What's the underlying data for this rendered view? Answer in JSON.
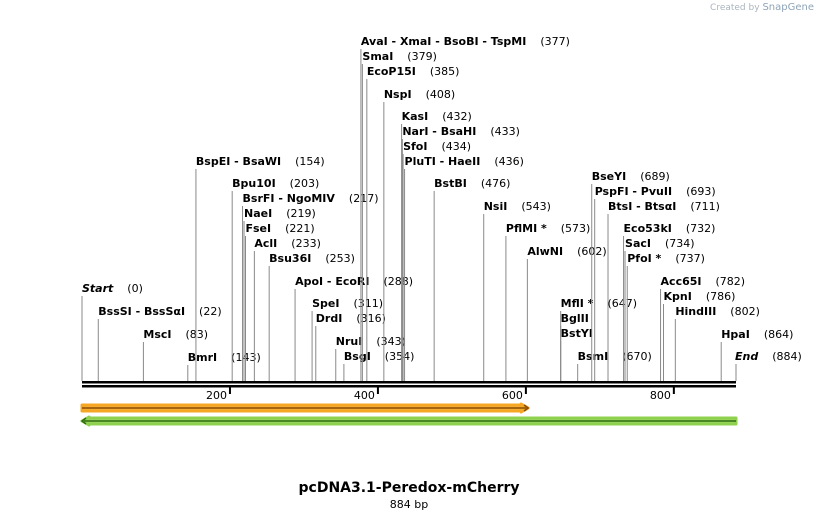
{
  "branding": {
    "created_by": "Created by",
    "app": "SnapGene"
  },
  "plasmid": {
    "name": "pcDNA3.1-Peredox-mCherry",
    "size_label": "884 bp",
    "length": 884
  },
  "axis": {
    "ticks": [
      200,
      400,
      600,
      800
    ]
  },
  "features": [
    {
      "name": "forward-feature-arrow",
      "start": 0,
      "end": 603,
      "direction": "forward",
      "fill": "#f5a623",
      "edge": "#8a4b00",
      "row": 0
    },
    {
      "name": "reverse-feature-arrow",
      "start": 0,
      "end": 884,
      "direction": "reverse",
      "fill": "#8fd14f",
      "edge": "#2f6b10",
      "row": 1
    }
  ],
  "sites": [
    {
      "label": "Start",
      "pos": 0,
      "pos_text": "(0)",
      "row": 0,
      "italic": true
    },
    {
      "label": "BssSI  -  BssSαI",
      "pos": 22,
      "pos_text": "(22)",
      "row": 1
    },
    {
      "label": "MscI",
      "pos": 83,
      "pos_text": "(83)",
      "row": 2
    },
    {
      "label": "BmrI",
      "pos": 143,
      "pos_text": "(143)",
      "row": 3
    },
    {
      "label": "BspEI  -  BsaWI",
      "pos": 154,
      "pos_text": "(154)",
      "row": 4
    },
    {
      "label": "Bpu10I",
      "pos": 203,
      "pos_text": "(203)",
      "row": 5
    },
    {
      "label": "BsrFI  -  NgoMIV",
      "pos": 217,
      "pos_text": "(217)",
      "row": 6
    },
    {
      "label": "NaeI",
      "pos": 219,
      "pos_text": "(219)",
      "row": 7
    },
    {
      "label": "FseI",
      "pos": 221,
      "pos_text": "(221)",
      "row": 8
    },
    {
      "label": "AclI",
      "pos": 233,
      "pos_text": "(233)",
      "row": 9
    },
    {
      "label": "Bsu36I",
      "pos": 253,
      "pos_text": "(253)",
      "row": 10
    },
    {
      "label": "ApoI  -  EcoRI",
      "pos": 288,
      "pos_text": "(288)",
      "row": 11
    },
    {
      "label": "SpeI",
      "pos": 311,
      "pos_text": "(311)",
      "row": 12
    },
    {
      "label": "DrdI",
      "pos": 316,
      "pos_text": "(316)",
      "row": 13
    },
    {
      "label": "NruI",
      "pos": 343,
      "pos_text": "(343)",
      "row": 14
    },
    {
      "label": "BsgI",
      "pos": 354,
      "pos_text": "(354)",
      "row": 15
    },
    {
      "label": "AvaI  -  XmaI  -  BsoBI  -  TspMI",
      "pos": 377,
      "pos_text": "(377)",
      "row": 16
    },
    {
      "label": "SmaI",
      "pos": 379,
      "pos_text": "(379)",
      "row": 17
    },
    {
      "label": "EcoP15I",
      "pos": 385,
      "pos_text": "(385)",
      "row": 18
    },
    {
      "label": "NspI",
      "pos": 408,
      "pos_text": "(408)",
      "row": 19
    },
    {
      "label": "KasI",
      "pos": 432,
      "pos_text": "(432)",
      "row": 20
    },
    {
      "label": "NarI  -  BsaHI",
      "pos": 433,
      "pos_text": "(433)",
      "row": 21
    },
    {
      "label": "SfoI",
      "pos": 434,
      "pos_text": "(434)",
      "row": 22
    },
    {
      "label": "PluTI  -  HaeII",
      "pos": 436,
      "pos_text": "(436)",
      "row": 23
    },
    {
      "label": "BstBI",
      "pos": 476,
      "pos_text": "(476)",
      "row": 24
    },
    {
      "label": "NsiI",
      "pos": 543,
      "pos_text": "(543)",
      "row": 25
    },
    {
      "label": "PflMI *",
      "pos": 573,
      "pos_text": "(573)",
      "row": 26
    },
    {
      "label": "AlwNI",
      "pos": 602,
      "pos_text": "(602)",
      "row": 27
    },
    {
      "label": "MflI *",
      "pos": 647,
      "pos_text": "(647)",
      "row": 28
    },
    {
      "label": "BglII",
      "pos": 647,
      "pos_text": "",
      "row": 29
    },
    {
      "label": "BstYI",
      "pos": 647,
      "pos_text": "",
      "row": 30
    },
    {
      "label": "BsmI",
      "pos": 670,
      "pos_text": "(670)",
      "row": 31
    },
    {
      "label": "BseYI",
      "pos": 689,
      "pos_text": "(689)",
      "row": 32
    },
    {
      "label": "PspFI  -  PvuII",
      "pos": 693,
      "pos_text": "(693)",
      "row": 33
    },
    {
      "label": "BtsI  -  BtsαI",
      "pos": 711,
      "pos_text": "(711)",
      "row": 34
    },
    {
      "label": "Eco53kI",
      "pos": 732,
      "pos_text": "(732)",
      "row": 35
    },
    {
      "label": "SacI",
      "pos": 734,
      "pos_text": "(734)",
      "row": 36
    },
    {
      "label": "PfoI *",
      "pos": 737,
      "pos_text": "(737)",
      "row": 37
    },
    {
      "label": "Acc65I",
      "pos": 782,
      "pos_text": "(782)",
      "row": 38
    },
    {
      "label": "KpnI",
      "pos": 786,
      "pos_text": "(786)",
      "row": 39
    },
    {
      "label": "HindIII",
      "pos": 802,
      "pos_text": "(802)",
      "row": 40
    },
    {
      "label": "HpaI",
      "pos": 864,
      "pos_text": "(864)",
      "row": 41
    },
    {
      "label": "End",
      "pos": 884,
      "pos_text": "(884)",
      "row": 42,
      "italic": true
    }
  ]
}
